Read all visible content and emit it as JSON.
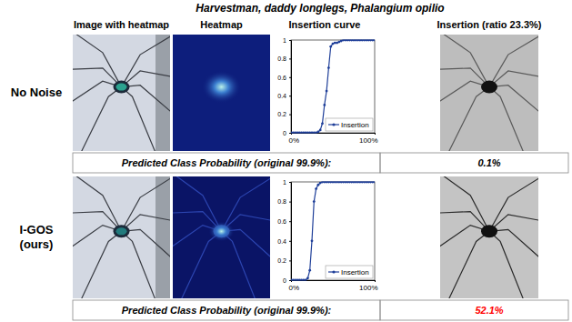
{
  "title": "Harvestman, daddy longlegs, Phalangium opilio",
  "columns": [
    "Image with heatmap",
    "Heatmap",
    "Insertion curve",
    "Insertion (ratio 23.3%)"
  ],
  "rows": [
    {
      "label": [
        "No Noise"
      ],
      "caption": "Predicted Class Probability (original 99.9%):",
      "insertion_probability": "0.1%",
      "color": "#000000"
    },
    {
      "label": [
        "I-GOS",
        "(ours)"
      ],
      "caption": "Predicted Class Probability (original 99.9%):",
      "insertion_probability": "52.1%",
      "color": "#ff0000"
    }
  ],
  "chart_data": [
    {
      "type": "line",
      "x": [
        0,
        2.5,
        5,
        7.5,
        10,
        12.5,
        15,
        17.5,
        20,
        22.5,
        25,
        27.5,
        30,
        32.5,
        35,
        37.5,
        40,
        42.5,
        45,
        47.5,
        50,
        52.5,
        55,
        57.5,
        60,
        62.5,
        65,
        67.5,
        70,
        72.5,
        75,
        77.5,
        80,
        82.5,
        85,
        87.5,
        90,
        92.5,
        95,
        97.5,
        100
      ],
      "xlim": [
        0,
        100
      ],
      "xticks": [
        {
          "value": 0,
          "label": "0%"
        },
        {
          "value": 100,
          "label": "100%"
        }
      ],
      "ylim": [
        0,
        1
      ],
      "yticks": [
        0,
        0.2,
        0.4,
        0.6,
        0.8,
        1
      ],
      "legend": "lower right",
      "series": [
        {
          "name": "Insertion",
          "color": "#1f3f99",
          "marker": "circle",
          "values": [
            0,
            0,
            0,
            0,
            0,
            0,
            0,
            0,
            0,
            0,
            0,
            0,
            0,
            0.01,
            0.03,
            0.1,
            0.3,
            0.45,
            0.7,
            0.93,
            0.96,
            0.97,
            0.97,
            0.98,
            0.99,
            1,
            1,
            1,
            1,
            1,
            1,
            1,
            1,
            1,
            1,
            1,
            1,
            1,
            1,
            1,
            1
          ]
        }
      ]
    },
    {
      "type": "line",
      "x": [
        0,
        2.5,
        5,
        7.5,
        10,
        12.5,
        15,
        17.5,
        20,
        22.5,
        25,
        27.5,
        30,
        32.5,
        35,
        37.5,
        40,
        42.5,
        45,
        47.5,
        50,
        52.5,
        55,
        57.5,
        60,
        62.5,
        65,
        67.5,
        70,
        72.5,
        75,
        77.5,
        80,
        82.5,
        85,
        87.5,
        90,
        92.5,
        95,
        97.5,
        100
      ],
      "xlim": [
        0,
        100
      ],
      "xticks": [
        {
          "value": 0,
          "label": "0%"
        },
        {
          "value": 100,
          "label": "100%"
        }
      ],
      "ylim": [
        0,
        1
      ],
      "yticks": [
        0,
        0.2,
        0.4,
        0.6,
        0.8,
        1
      ],
      "legend": "lower right",
      "series": [
        {
          "name": "Insertion",
          "color": "#1f3f99",
          "marker": "circle",
          "values": [
            0,
            0,
            0,
            0,
            0,
            0,
            0,
            0,
            0.02,
            0.1,
            0.4,
            0.8,
            0.93,
            0.97,
            0.99,
            1,
            1,
            1,
            1,
            1,
            1,
            1,
            1,
            1,
            1,
            1,
            1,
            1,
            1,
            1,
            1,
            1,
            1,
            1,
            1,
            1,
            1,
            1,
            1,
            1,
            1
          ]
        }
      ]
    }
  ]
}
